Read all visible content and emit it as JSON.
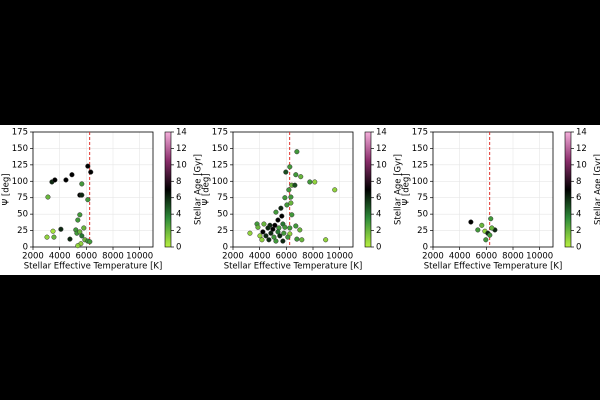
{
  "chart_data": [
    {
      "type": "scatter",
      "xlabel": "Stellar Effective Temperature [K]",
      "ylabel": "Ψ [deg]",
      "colorbar_label": "Stellar Age [Gyr]",
      "xlim": [
        2000,
        11000
      ],
      "xticks": [
        2000,
        4000,
        6000,
        8000,
        10000
      ],
      "ylim": [
        0,
        175
      ],
      "yticks": [
        0,
        25,
        50,
        75,
        100,
        125,
        150,
        175
      ],
      "clim": [
        0,
        14
      ],
      "cticks": [
        0,
        2,
        4,
        6,
        8,
        10,
        12,
        14
      ],
      "cmap": [
        "#b8f040",
        "#2e8b3a",
        "#000000",
        "#8b2d6b",
        "#f5b0dc"
      ],
      "vline": 6250,
      "vline_color": "#e0302a",
      "grid": true,
      "x": [
        3420,
        3640,
        4470,
        4920,
        6110,
        6330,
        5660,
        5510,
        5660,
        3120,
        6110,
        3500,
        4090,
        3050,
        3570,
        4770,
        5210,
        5360,
        5510,
        5290,
        5510,
        5660,
        5890,
        6110,
        6260,
        5590,
        5360,
        5810
      ],
      "values": [
        99,
        102,
        102,
        110,
        123,
        114,
        96,
        79,
        79,
        76,
        72,
        24,
        27,
        15,
        15,
        12,
        26,
        41,
        49,
        21,
        23,
        17,
        11,
        9,
        8,
        5,
        2,
        29
      ],
      "ages": [
        6,
        7,
        7,
        7,
        7,
        7,
        3,
        7,
        6,
        2,
        3,
        0.5,
        6,
        1,
        2,
        6,
        3,
        3,
        3,
        3,
        2,
        4,
        2,
        3,
        3,
        1,
        1,
        2
      ]
    },
    {
      "type": "scatter",
      "xlabel": "Stellar Effective Temperature [K]",
      "ylabel": "Ψ [deg]",
      "colorbar_label": "Stellar Age [Gyr]",
      "xlim": [
        2000,
        11000
      ],
      "xticks": [
        2000,
        4000,
        6000,
        8000,
        10000
      ],
      "ylim": [
        0,
        175
      ],
      "yticks": [
        0,
        25,
        50,
        75,
        100,
        125,
        150,
        175
      ],
      "clim": [
        0,
        14
      ],
      "cticks": [
        0,
        2,
        4,
        6,
        8,
        10,
        12,
        14
      ],
      "cmap": [
        "#b8f040",
        "#2e8b3a",
        "#000000",
        "#8b2d6b",
        "#f5b0dc"
      ],
      "vline": 6250,
      "vline_color": "#e0302a",
      "grid": true,
      "x": [
        6790,
        6260,
        5960,
        6710,
        7080,
        7760,
        8130,
        9630,
        6410,
        6640,
        6190,
        5890,
        6340,
        5590,
        6040,
        6340,
        5220,
        5660,
        5370,
        6410,
        3800,
        4320,
        4770,
        5140,
        5740,
        3870,
        4620,
        4990,
        5440,
        5890,
        6260,
        6710,
        7010,
        4240,
        4840,
        5370,
        5810,
        6260,
        4020,
        4470,
        5070,
        5510,
        6110,
        6790,
        7160,
        8950,
        4690,
        5220,
        5740,
        3270,
        4170
      ],
      "values": [
        145,
        122,
        114,
        110,
        107,
        99,
        99,
        87,
        94,
        94,
        87,
        75,
        76,
        59,
        64,
        67,
        53,
        47,
        41,
        49,
        35,
        35,
        33,
        33,
        35,
        30,
        29,
        27,
        29,
        30,
        29,
        32,
        26,
        23,
        21,
        23,
        21,
        20,
        17,
        17,
        15,
        17,
        15,
        12,
        11,
        11,
        11,
        9,
        9,
        21,
        11
      ],
      "ages": [
        3,
        3,
        5,
        3,
        2,
        3,
        1,
        1,
        2,
        5,
        3,
        3,
        3,
        6,
        3,
        2,
        3,
        7,
        7,
        3,
        3,
        2,
        6,
        7,
        4,
        2,
        6,
        7,
        3,
        3,
        3,
        3,
        2,
        7,
        6,
        4,
        3,
        1,
        1,
        6,
        3,
        6,
        3,
        3,
        2,
        1,
        6,
        3,
        6,
        1,
        1
      ]
    },
    {
      "type": "scatter",
      "xlabel": "Stellar Effective Temperature [K]",
      "ylabel": "Ψ [deg]",
      "colorbar_label": "Stellar Age [Gyr]",
      "xlim": [
        2000,
        11000
      ],
      "xticks": [
        2000,
        4000,
        6000,
        8000,
        10000
      ],
      "ylim": [
        0,
        175
      ],
      "yticks": [
        0,
        25,
        50,
        75,
        100,
        125,
        150,
        175
      ],
      "clim": [
        0,
        14
      ],
      "cticks": [
        0,
        2,
        4,
        6,
        8,
        10,
        12,
        14
      ],
      "cmap": [
        "#b8f040",
        "#2e8b3a",
        "#000000",
        "#8b2d6b",
        "#f5b0dc"
      ],
      "vline": 6250,
      "vline_color": "#e0302a",
      "grid": true,
      "x": [
        4840,
        6330,
        5660,
        5360,
        5890,
        6110,
        6640,
        6260,
        5960,
        6410
      ],
      "values": [
        38,
        43,
        33,
        26,
        24,
        21,
        26,
        18,
        11,
        29
      ],
      "ages": [
        7,
        3,
        2,
        3,
        1,
        6,
        6,
        3,
        3,
        2
      ]
    }
  ]
}
